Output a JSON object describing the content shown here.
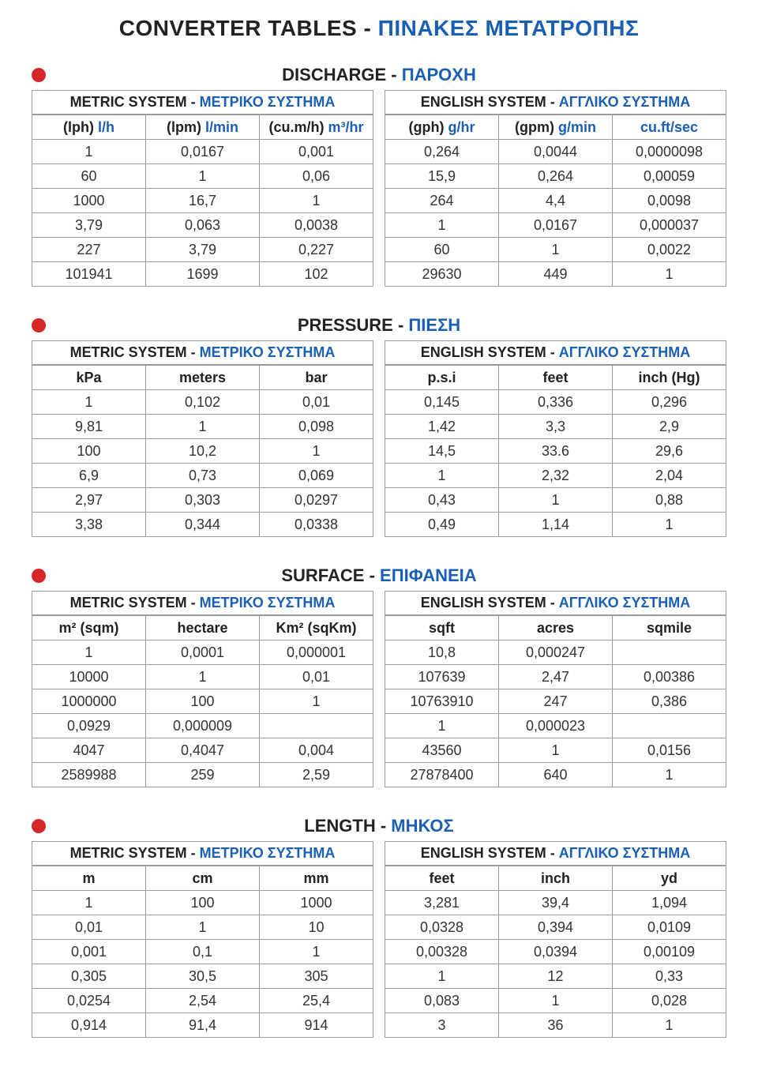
{
  "page_title_en": "CONVERTER TABLES - ",
  "page_title_gr": "ΠΙΝΑΚΕΣ ΜΕΤΑΤΡΟΠΗΣ",
  "colors": {
    "greek_blue": "#1a5fb4",
    "bullet_red": "#d62728",
    "border": "#999999",
    "text": "#222222"
  },
  "metric_label_en": "METRIC SYSTEM - ",
  "metric_label_gr": "ΜΕΤΡΙΚΟ ΣΥΣΤΗΜΑ",
  "english_label_en": "ENGLISH SYSTEM - ",
  "english_label_gr": "ΑΓΓΛΙΚΟ ΣΥΣΤΗΜΑ",
  "sections": [
    {
      "title_en": "DISCHARGE - ",
      "title_gr": "ΠΑΡΟΧΗ",
      "metric": {
        "headers": [
          {
            "en": "(lph) ",
            "gr": "l/h"
          },
          {
            "en": "(lpm) ",
            "gr": "l/min"
          },
          {
            "en": "(cu.m/h) ",
            "gr": "m³/hr"
          }
        ],
        "rows": [
          [
            "1",
            "0,0167",
            "0,001"
          ],
          [
            "60",
            "1",
            "0,06"
          ],
          [
            "1000",
            "16,7",
            "1"
          ],
          [
            "3,79",
            "0,063",
            "0,0038"
          ],
          [
            "227",
            "3,79",
            "0,227"
          ],
          [
            "101941",
            "1699",
            "102"
          ]
        ]
      },
      "english": {
        "headers": [
          {
            "en": "(gph) ",
            "gr": "g/hr"
          },
          {
            "en": "(gpm) ",
            "gr": "g/min"
          },
          {
            "en": "",
            "gr": "cu.ft/sec"
          }
        ],
        "rows": [
          [
            "0,264",
            "0,0044",
            "0,0000098"
          ],
          [
            "15,9",
            "0,264",
            "0,00059"
          ],
          [
            "264",
            "4,4",
            "0,0098"
          ],
          [
            "1",
            "0,0167",
            "0,000037"
          ],
          [
            "60",
            "1",
            "0,0022"
          ],
          [
            "29630",
            "449",
            "1"
          ]
        ]
      }
    },
    {
      "title_en": "PRESSURE - ",
      "title_gr": "ΠΙΕΣΗ",
      "metric": {
        "headers": [
          {
            "en": "kPa",
            "gr": ""
          },
          {
            "en": "meters",
            "gr": ""
          },
          {
            "en": "bar",
            "gr": ""
          }
        ],
        "rows": [
          [
            "1",
            "0,102",
            "0,01"
          ],
          [
            "9,81",
            "1",
            "0,098"
          ],
          [
            "100",
            "10,2",
            "1"
          ],
          [
            "6,9",
            "0,73",
            "0,069"
          ],
          [
            "2,97",
            "0,303",
            "0,0297"
          ],
          [
            "3,38",
            "0,344",
            "0,0338"
          ]
        ]
      },
      "english": {
        "headers": [
          {
            "en": "p.s.i",
            "gr": ""
          },
          {
            "en": "feet",
            "gr": ""
          },
          {
            "en": "inch (Hg)",
            "gr": ""
          }
        ],
        "rows": [
          [
            "0,145",
            "0,336",
            "0,296"
          ],
          [
            "1,42",
            "3,3",
            "2,9"
          ],
          [
            "14,5",
            "33.6",
            "29,6"
          ],
          [
            "1",
            "2,32",
            "2,04"
          ],
          [
            "0,43",
            "1",
            "0,88"
          ],
          [
            "0,49",
            "1,14",
            "1"
          ]
        ]
      }
    },
    {
      "title_en": "SURFACE - ",
      "title_gr": "ΕΠΙΦΑΝΕΙΑ",
      "metric": {
        "headers": [
          {
            "en": "m² (sqm)",
            "gr": ""
          },
          {
            "en": "hectare",
            "gr": ""
          },
          {
            "en": "Km² (sqKm)",
            "gr": ""
          }
        ],
        "rows": [
          [
            "1",
            "0,0001",
            "0,000001"
          ],
          [
            "10000",
            "1",
            "0,01"
          ],
          [
            "1000000",
            "100",
            "1"
          ],
          [
            "0,0929",
            "0,000009",
            ""
          ],
          [
            "4047",
            "0,4047",
            "0,004"
          ],
          [
            "2589988",
            "259",
            "2,59"
          ]
        ]
      },
      "english": {
        "headers": [
          {
            "en": "sqft",
            "gr": ""
          },
          {
            "en": "acres",
            "gr": ""
          },
          {
            "en": "sqmile",
            "gr": ""
          }
        ],
        "rows": [
          [
            "10,8",
            "0,000247",
            ""
          ],
          [
            "107639",
            "2,47",
            "0,00386"
          ],
          [
            "10763910",
            "247",
            "0,386"
          ],
          [
            "1",
            "0,000023",
            ""
          ],
          [
            "43560",
            "1",
            "0,0156"
          ],
          [
            "27878400",
            "640",
            "1"
          ]
        ]
      }
    },
    {
      "title_en": "LENGTH - ",
      "title_gr": "ΜΗΚΟΣ",
      "metric": {
        "headers": [
          {
            "en": "m",
            "gr": ""
          },
          {
            "en": "cm",
            "gr": ""
          },
          {
            "en": "mm",
            "gr": ""
          }
        ],
        "rows": [
          [
            "1",
            "100",
            "1000"
          ],
          [
            "0,01",
            "1",
            "10"
          ],
          [
            "0,001",
            "0,1",
            "1"
          ],
          [
            "0,305",
            "30,5",
            "305"
          ],
          [
            "0,0254",
            "2,54",
            "25,4"
          ],
          [
            "0,914",
            "91,4",
            "914"
          ]
        ]
      },
      "english": {
        "headers": [
          {
            "en": "feet",
            "gr": ""
          },
          {
            "en": "inch",
            "gr": ""
          },
          {
            "en": "yd",
            "gr": ""
          }
        ],
        "rows": [
          [
            "3,281",
            "39,4",
            "1,094"
          ],
          [
            "0,0328",
            "0,394",
            "0,0109"
          ],
          [
            "0,00328",
            "0,0394",
            "0,00109"
          ],
          [
            "1",
            "12",
            "0,33"
          ],
          [
            "0,083",
            "1",
            "0,028"
          ],
          [
            "3",
            "36",
            "1"
          ]
        ]
      }
    }
  ]
}
